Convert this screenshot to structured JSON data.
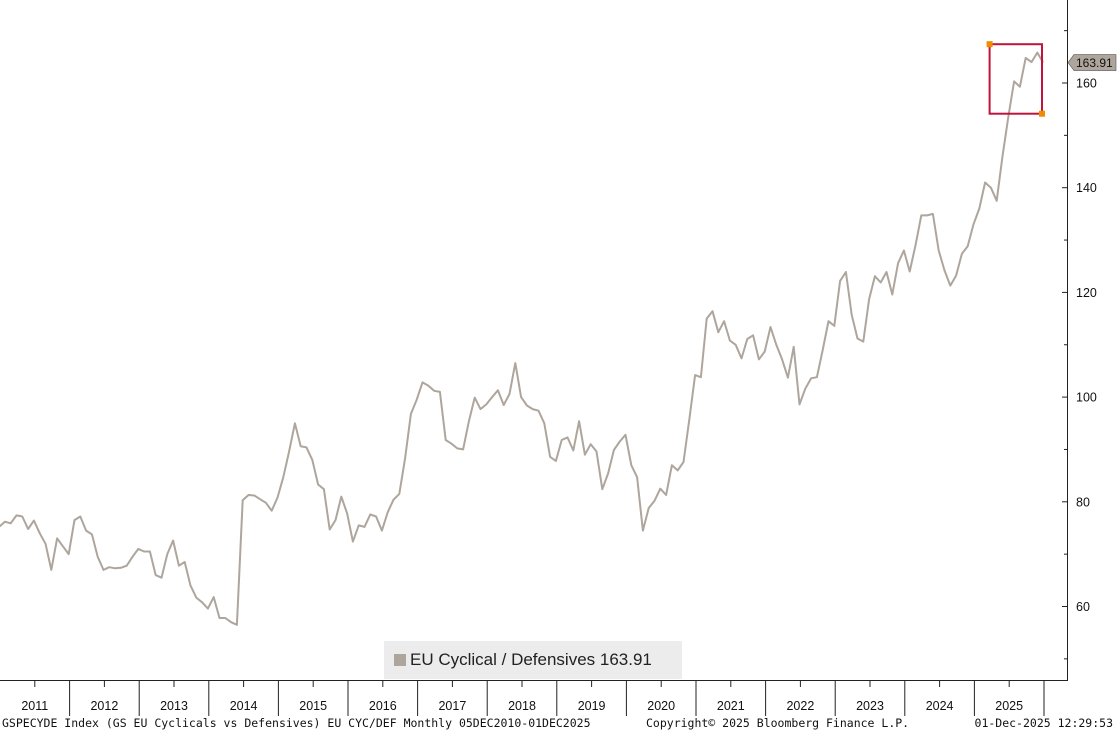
{
  "chart_data": {
    "type": "line",
    "series": [
      {
        "name": "EU Cyclical / Defensives",
        "color": "#aea59c",
        "last_value": "163.91",
        "x": [
          "2010-12",
          "2011-01",
          "2011-02",
          "2011-03",
          "2011-04",
          "2011-05",
          "2011-06",
          "2011-07",
          "2011-08",
          "2011-09",
          "2011-10",
          "2011-11",
          "2011-12",
          "2012-01",
          "2012-02",
          "2012-03",
          "2012-04",
          "2012-05",
          "2012-06",
          "2012-07",
          "2012-08",
          "2012-09",
          "2012-10",
          "2012-11",
          "2012-12",
          "2013-01",
          "2013-02",
          "2013-03",
          "2013-04",
          "2013-05",
          "2013-06",
          "2013-07",
          "2013-08",
          "2013-09",
          "2013-10",
          "2013-11",
          "2013-12",
          "2014-01",
          "2014-02",
          "2014-03",
          "2014-04",
          "2014-05",
          "2014-06",
          "2014-07",
          "2014-08",
          "2014-09",
          "2014-10",
          "2014-11",
          "2014-12",
          "2015-01",
          "2015-02",
          "2015-03",
          "2015-04",
          "2015-05",
          "2015-06",
          "2015-07",
          "2015-08",
          "2015-09",
          "2015-10",
          "2015-11",
          "2015-12",
          "2016-01",
          "2016-02",
          "2016-03",
          "2016-04",
          "2016-05",
          "2016-06",
          "2016-07",
          "2016-08",
          "2016-09",
          "2016-10",
          "2016-11",
          "2016-12",
          "2017-01",
          "2017-02",
          "2017-03",
          "2017-04",
          "2017-05",
          "2017-06",
          "2017-07",
          "2017-08",
          "2017-09",
          "2017-10",
          "2017-11",
          "2017-12",
          "2018-01",
          "2018-02",
          "2018-03",
          "2018-04",
          "2018-05",
          "2018-06",
          "2018-07",
          "2018-08",
          "2018-09",
          "2018-10",
          "2018-11",
          "2018-12",
          "2019-01",
          "2019-02",
          "2019-03",
          "2019-04",
          "2019-05",
          "2019-06",
          "2019-07",
          "2019-08",
          "2019-09",
          "2019-10",
          "2019-11",
          "2019-12",
          "2020-01",
          "2020-02",
          "2020-03",
          "2020-04",
          "2020-05",
          "2020-06",
          "2020-07",
          "2020-08",
          "2020-09",
          "2020-10",
          "2020-11",
          "2020-12",
          "2021-01",
          "2021-02",
          "2021-03",
          "2021-04",
          "2021-05",
          "2021-06",
          "2021-07",
          "2021-08",
          "2021-09",
          "2021-10",
          "2021-11",
          "2021-12",
          "2022-01",
          "2022-02",
          "2022-03",
          "2022-04",
          "2022-05",
          "2022-06",
          "2022-07",
          "2022-08",
          "2022-09",
          "2022-10",
          "2022-11",
          "2022-12",
          "2023-01",
          "2023-02",
          "2023-03",
          "2023-04",
          "2023-05",
          "2023-06",
          "2023-07",
          "2023-08",
          "2023-09",
          "2023-10",
          "2023-11",
          "2023-12",
          "2024-01",
          "2024-02",
          "2024-03",
          "2024-04",
          "2024-05",
          "2024-06",
          "2024-07",
          "2024-08",
          "2024-09",
          "2024-10",
          "2024-11",
          "2024-12",
          "2025-01",
          "2025-02",
          "2025-03",
          "2025-04",
          "2025-05",
          "2025-06",
          "2025-07",
          "2025-08",
          "2025-09",
          "2025-10",
          "2025-11",
          "2025-12"
        ],
        "values": [
          75.2,
          76.2,
          75.9,
          77.4,
          77.2,
          74.8,
          76.4,
          74.0,
          72.0,
          67.0,
          73.0,
          71.5,
          70.0,
          76.5,
          77.2,
          74.5,
          73.8,
          69.5,
          67.0,
          67.5,
          67.3,
          67.4,
          67.8,
          69.5,
          71.0,
          70.5,
          70.5,
          66.0,
          65.5,
          70.0,
          72.6,
          67.8,
          68.5,
          64.0,
          61.7,
          60.8,
          59.6,
          61.8,
          57.8,
          57.8,
          57.0,
          56.5,
          80.3,
          81.3,
          81.2,
          80.5,
          79.8,
          78.3,
          80.8,
          84.7,
          89.6,
          95.0,
          90.6,
          90.4,
          88.0,
          83.3,
          82.4,
          74.7,
          76.5,
          81.0,
          77.8,
          72.4,
          75.5,
          75.2,
          77.6,
          77.2,
          74.5,
          78.0,
          80.4,
          81.5,
          88.3,
          96.8,
          99.5,
          102.8,
          102.2,
          101.2,
          101.0,
          91.8,
          91.1,
          90.2,
          90.0,
          95.4,
          99.9,
          97.7,
          98.6,
          100.0,
          101.3,
          98.5,
          100.6,
          106.5,
          100.0,
          98.4,
          97.7,
          97.4,
          95.0,
          88.6,
          87.8,
          91.8,
          92.3,
          89.8,
          95.4,
          89.0,
          91.0,
          89.6,
          82.4,
          85.4,
          89.9,
          91.5,
          92.8,
          87.0,
          84.7,
          74.5,
          78.8,
          80.2,
          82.5,
          81.3,
          87.0,
          86.0,
          87.6,
          95.7,
          104.2,
          103.8,
          115.0,
          116.4,
          112.4,
          114.5,
          110.8,
          110.0,
          107.4,
          111.1,
          111.8,
          107.2,
          108.7,
          113.4,
          110.0,
          107.2,
          103.7,
          109.6,
          98.6,
          101.6,
          103.6,
          103.8,
          109.0,
          114.5,
          113.6,
          122.2,
          123.9,
          115.7,
          111.2,
          110.6,
          118.7,
          123.1,
          121.9,
          123.9,
          119.6,
          125.6,
          128.0,
          124.0,
          129.0,
          134.7,
          134.7,
          135.0,
          128.0,
          124.2,
          121.3,
          123.2,
          127.4,
          128.8,
          133.0,
          136.0,
          141.0,
          140.0,
          137.5,
          146.0,
          153.5,
          160.3,
          159.3,
          164.8,
          164.0,
          165.8,
          163.91
        ]
      }
    ],
    "y_ticks": [
      "60",
      "80",
      "100",
      "120",
      "140",
      "160"
    ],
    "ylim": [
      48,
      176
    ],
    "x_ticks": [
      "2011",
      "2012",
      "2013",
      "2014",
      "2015",
      "2016",
      "2017",
      "2018",
      "2019",
      "2020",
      "2021",
      "2022",
      "2023",
      "2024",
      "2025"
    ],
    "highlight_box": {
      "from": "2025-05",
      "to": "2026-01",
      "ymin": 157,
      "ymax": 165.5,
      "color": "#c0143c"
    },
    "grid": false,
    "legend": "bottom-center",
    "legend_label": "EU Cyclical / Defensives 163.91"
  },
  "footer": {
    "left": "GSPECYDE Index (GS EU Cyclicals vs Defensives) EU CYC/DEF Monthly 05DEC2010-01DEC2025",
    "center": "Copyright© 2025 Bloomberg Finance L.P.",
    "right": "01-Dec-2025 12:29:53"
  }
}
